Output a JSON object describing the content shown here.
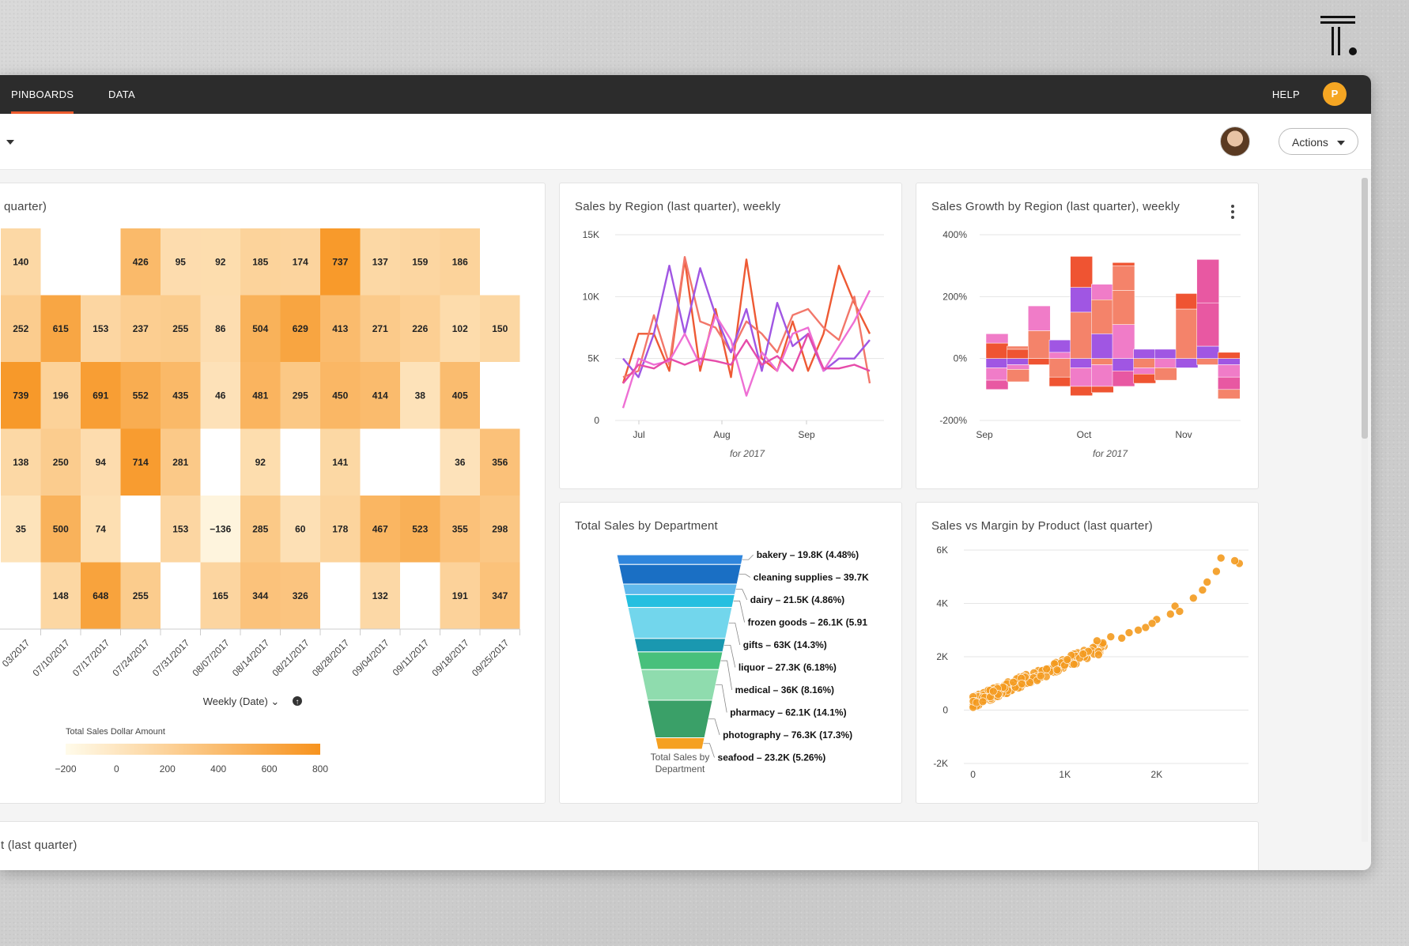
{
  "nav": {
    "tabs": [
      "PINBOARDS",
      "DATA"
    ],
    "help": "HELP",
    "user_initial": "P"
  },
  "actions_label": "Actions",
  "heatmap_card": {
    "title": "quarter)"
  },
  "region_card": {
    "title": "Sales by Region (last quarter), weekly"
  },
  "growth_card": {
    "title": "Sales Growth by Region (last quarter), weekly"
  },
  "dept_card": {
    "title": "Total Sales by Department"
  },
  "margin_card": {
    "title": "Sales vs Margin by Product (last quarter)"
  },
  "bottom_card": {
    "title": "t (last quarter)"
  },
  "chart_data": [
    {
      "type": "heatmap",
      "title": "quarter)",
      "xlabel": "Weekly (Date)",
      "x": [
        "03/2017",
        "07/10/2017",
        "07/17/2017",
        "07/24/2017",
        "07/31/2017",
        "08/07/2017",
        "08/14/2017",
        "08/21/2017",
        "08/28/2017",
        "09/04/2017",
        "09/11/2017",
        "09/18/2017",
        "09/25/2017"
      ],
      "rows": [
        [
          140,
          null,
          null,
          426,
          95,
          92,
          185,
          174,
          737,
          137,
          159,
          186,
          null
        ],
        [
          252,
          615,
          153,
          237,
          255,
          86,
          504,
          629,
          413,
          271,
          226,
          102,
          150
        ],
        [
          739,
          196,
          691,
          552,
          435,
          46,
          481,
          295,
          450,
          414,
          38,
          405,
          null
        ],
        [
          138,
          250,
          94,
          714,
          281,
          null,
          92,
          null,
          141,
          null,
          null,
          36,
          356
        ],
        [
          35,
          500,
          74,
          null,
          153,
          -136,
          285,
          60,
          178,
          467,
          523,
          355,
          298
        ],
        [
          null,
          148,
          648,
          255,
          null,
          165,
          344,
          326,
          null,
          132,
          null,
          191,
          347
        ]
      ],
      "legend": {
        "title": "Total Sales Dollar Amount",
        "ticks": [
          "-200",
          "0",
          "200",
          "400",
          "600",
          "800"
        ],
        "range": [
          -200,
          800
        ]
      }
    },
    {
      "type": "line",
      "title": "Sales by Region (last quarter), weekly",
      "xlabel": "for 2017",
      "xticks": [
        "Jul",
        "Aug",
        "Sep"
      ],
      "yticks": [
        "0",
        "5K",
        "10K",
        "15K"
      ],
      "ylim": [
        0,
        15000
      ],
      "series": [
        {
          "color": "#ee5a34",
          "values": [
            3000,
            7000,
            7000,
            4000,
            13000,
            4000,
            9000,
            3500,
            13000,
            5000,
            4000,
            8000,
            4000,
            7000,
            12500,
            9500,
            7000
          ]
        },
        {
          "color": "#f2776a",
          "values": [
            3500,
            4000,
            8500,
            4500,
            13200,
            8000,
            7500,
            5500,
            8000,
            7000,
            5500,
            8500,
            9000,
            7500,
            6500,
            10000,
            3000
          ]
        },
        {
          "color": "#a056e3",
          "values": [
            5000,
            3500,
            7000,
            12500,
            7000,
            12300,
            8500,
            5500,
            9000,
            4000,
            9500,
            6000,
            7000,
            4000,
            5000,
            5000,
            6500
          ]
        },
        {
          "color": "#ee6fd4",
          "values": [
            1000,
            5000,
            4500,
            4800,
            7000,
            4500,
            8500,
            6500,
            2000,
            5500,
            4000,
            7000,
            7500,
            4000,
            6000,
            8000,
            10500
          ]
        },
        {
          "color": "#e64ba9",
          "values": [
            3000,
            4500,
            4200,
            5000,
            4500,
            5000,
            4800,
            4500,
            6500,
            4500,
            5200,
            4000,
            7000,
            4200,
            4200,
            4500,
            4000
          ]
        }
      ]
    },
    {
      "type": "bar",
      "title": "Sales Growth by Region (last quarter), weekly",
      "xlabel": "for 2017",
      "xticks": [
        "Sep",
        "Oct",
        "Nov"
      ],
      "yticks": [
        "-200%",
        "0%",
        "200%",
        "400%"
      ],
      "ylim": [
        -200,
        400
      ],
      "series_colors": [
        "#ef5432",
        "#f4836a",
        "#f07cc8",
        "#a056e3",
        "#e858a2"
      ],
      "stacks": [
        {
          "pos": [
            {
              "v": 50,
              "c": 0
            },
            {
              "v": 30,
              "c": 2
            }
          ],
          "neg": [
            {
              "v": -30,
              "c": 3
            },
            {
              "v": -40,
              "c": 2
            },
            {
              "v": -30,
              "c": 4
            }
          ]
        },
        {
          "pos": [
            {
              "v": 30,
              "c": 0
            },
            {
              "v": 10,
              "c": 1
            }
          ],
          "neg": [
            {
              "v": -20,
              "c": 3
            },
            {
              "v": -15,
              "c": 2
            },
            {
              "v": -40,
              "c": 1
            }
          ]
        },
        {
          "pos": [
            {
              "v": 90,
              "c": 1
            },
            {
              "v": 80,
              "c": 2
            }
          ],
          "neg": [
            {
              "v": -20,
              "c": 0
            }
          ]
        },
        {
          "pos": [
            {
              "v": 20,
              "c": 2
            },
            {
              "v": 40,
              "c": 3
            }
          ],
          "neg": [
            {
              "v": -60,
              "c": 1
            },
            {
              "v": -30,
              "c": 0
            }
          ]
        },
        {
          "pos": [
            {
              "v": 150,
              "c": 1
            },
            {
              "v": 80,
              "c": 3
            },
            {
              "v": 100,
              "c": 0
            }
          ],
          "neg": [
            {
              "v": -30,
              "c": 3
            },
            {
              "v": -60,
              "c": 2
            },
            {
              "v": -30,
              "c": 0
            }
          ]
        },
        {
          "pos": [
            {
              "v": 80,
              "c": 3
            },
            {
              "v": 110,
              "c": 1
            },
            {
              "v": 50,
              "c": 2
            }
          ],
          "neg": [
            {
              "v": -20,
              "c": 1
            },
            {
              "v": -70,
              "c": 2
            },
            {
              "v": -20,
              "c": 0
            }
          ]
        },
        {
          "pos": [
            {
              "v": 110,
              "c": 2
            },
            {
              "v": 110,
              "c": 1
            },
            {
              "v": 80,
              "c": 1
            },
            {
              "v": 10,
              "c": 0
            }
          ],
          "neg": [
            {
              "v": -40,
              "c": 3
            },
            {
              "v": -50,
              "c": 4
            }
          ]
        },
        {
          "pos": [
            {
              "v": 30,
              "c": 3
            }
          ],
          "neg": [
            {
              "v": -30,
              "c": 1
            },
            {
              "v": -20,
              "c": 2
            },
            {
              "v": -30,
              "c": 0
            }
          ]
        },
        {
          "pos": [
            {
              "v": 30,
              "c": 3
            }
          ],
          "neg": [
            {
              "v": -30,
              "c": 2
            },
            {
              "v": -40,
              "c": 1
            }
          ]
        },
        {
          "pos": [
            {
              "v": 160,
              "c": 1
            },
            {
              "v": 50,
              "c": 0
            }
          ],
          "neg": [
            {
              "v": -30,
              "c": 3
            }
          ]
        },
        {
          "pos": [
            {
              "v": 40,
              "c": 3
            },
            {
              "v": 140,
              "c": 4
            },
            {
              "v": 140,
              "c": 4
            }
          ],
          "neg": [
            {
              "v": -20,
              "c": 1
            }
          ]
        },
        {
          "pos": [
            {
              "v": 20,
              "c": 0
            }
          ],
          "neg": [
            {
              "v": -20,
              "c": 3
            },
            {
              "v": -40,
              "c": 2
            },
            {
              "v": -40,
              "c": 4
            },
            {
              "v": -30,
              "c": 1
            }
          ]
        }
      ]
    },
    {
      "type": "funnel",
      "title": "Total Sales by Department",
      "footer": "Total Sales by Department",
      "segments": [
        {
          "label": "bakery - 19.8K (4.48%)",
          "color": "#2f86dd",
          "share": 4.48
        },
        {
          "label": "cleaning supplies - 39.7K",
          "color": "#1a6fc4",
          "share": 8.98
        },
        {
          "label": "dairy - 21.5K (4.86%)",
          "color": "#5fb8ec",
          "share": 4.86
        },
        {
          "label": "frozen goods - 26.1K (5.91",
          "color": "#25bfe0",
          "share": 5.91
        },
        {
          "label": "gifts - 63K (14.3%)",
          "color": "#72d6ec",
          "share": 14.3
        },
        {
          "label": "liquor - 27.3K (6.18%)",
          "color": "#1a98b0",
          "share": 6.18
        },
        {
          "label": "medical - 36K (8.16%)",
          "color": "#48c07c",
          "share": 8.16
        },
        {
          "label": "pharmacy - 62.1K (14.1%)",
          "color": "#8fdcae",
          "share": 14.1
        },
        {
          "label": "photography - 76.3K (17.3%)",
          "color": "#3aa068",
          "share": 17.3
        },
        {
          "label": "seafood - 23.2K (5.26%)",
          "color": "#f5a020",
          "share": 5.26
        }
      ]
    },
    {
      "type": "scatter",
      "title": "Sales vs Margin by Product (last quarter)",
      "xticks": [
        "0",
        "1K",
        "2K"
      ],
      "yticks": [
        "-2K",
        "0",
        "2K",
        "4K",
        "6K"
      ],
      "xlim": [
        -100,
        3000
      ],
      "ylim": [
        -2000,
        6000
      ],
      "color": "#f39a1e"
    }
  ]
}
